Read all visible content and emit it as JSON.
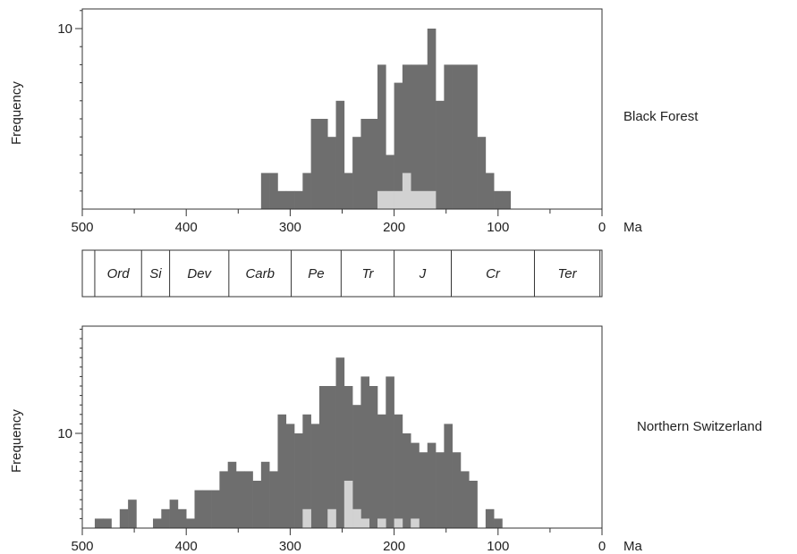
{
  "chart_data": [
    {
      "type": "bar",
      "name": "Black Forest",
      "ylabel": "Frequency",
      "x_unit": "Ma",
      "xlim": [
        500,
        0
      ],
      "x_ticks": [
        500,
        400,
        300,
        200,
        100,
        0
      ],
      "y_ticks": [
        10
      ],
      "ylim": [
        0,
        11
      ],
      "bin_width_ma": 8,
      "series": [
        {
          "role": "total",
          "color": "#6e6e6e",
          "bin_left_ma": [
            328,
            320,
            312,
            304,
            296,
            288,
            280,
            272,
            264,
            256,
            248,
            240,
            232,
            224,
            216,
            208,
            200,
            192,
            184,
            176,
            168,
            160,
            152,
            144,
            136,
            128,
            120,
            112,
            104,
            96
          ],
          "values": [
            2,
            2,
            1,
            1,
            1,
            2,
            5,
            5,
            4,
            6,
            2,
            4,
            5,
            5,
            8,
            3,
            7,
            8,
            8,
            8,
            10,
            6,
            8,
            8,
            8,
            8,
            4,
            2,
            1,
            1
          ]
        },
        {
          "role": "highlighted",
          "color": "#d2d2d2",
          "bin_left_ma": [
            216,
            208,
            200,
            192,
            184,
            176,
            168
          ],
          "values": [
            1,
            1,
            1,
            2,
            1,
            1,
            1
          ]
        }
      ]
    },
    {
      "type": "bar",
      "name": "Northern Switzerland",
      "ylabel": "Frequency",
      "x_unit": "Ma",
      "xlim": [
        500,
        0
      ],
      "x_ticks": [
        500,
        400,
        300,
        200,
        100,
        0
      ],
      "y_ticks": [
        10
      ],
      "ylim": [
        0,
        22
      ],
      "bin_width_ma": 8,
      "series": [
        {
          "role": "total",
          "color": "#6e6e6e",
          "bin_left_ma": [
            496,
            488,
            480,
            472,
            464,
            456,
            448,
            440,
            432,
            424,
            416,
            408,
            400,
            392,
            384,
            376,
            368,
            360,
            352,
            344,
            336,
            328,
            320,
            312,
            304,
            296,
            288,
            280,
            272,
            264,
            256,
            248,
            240,
            232,
            224,
            216,
            208,
            200,
            192,
            184,
            176,
            168,
            160,
            152,
            144,
            136,
            128,
            120,
            112,
            104,
            96
          ],
          "values": [
            0,
            1,
            1,
            0,
            2,
            3,
            0,
            0,
            1,
            2,
            3,
            2,
            1,
            4,
            4,
            4,
            6,
            7,
            6,
            6,
            5,
            7,
            6,
            12,
            11,
            10,
            12,
            11,
            15,
            15,
            18,
            15,
            13,
            16,
            15,
            12,
            16,
            12,
            10,
            9,
            8,
            9,
            8,
            11,
            8,
            6,
            5,
            0,
            2,
            1,
            0
          ],
          "_note": "rendered aligned to bins"
        },
        {
          "role": "highlighted",
          "color": "#d2d2d2",
          "bin_left_ma": [
            288,
            264,
            248,
            240,
            232,
            216,
            200,
            184
          ],
          "values": [
            2,
            2,
            5,
            2,
            1,
            1,
            1,
            1
          ]
        }
      ]
    }
  ],
  "periods": [
    {
      "label": "Ord",
      "start_ma": 488,
      "end_ma": 443
    },
    {
      "label": "Si",
      "start_ma": 443,
      "end_ma": 416
    },
    {
      "label": "Dev",
      "start_ma": 416,
      "end_ma": 359
    },
    {
      "label": "Carb",
      "start_ma": 359,
      "end_ma": 299
    },
    {
      "label": "Pe",
      "start_ma": 299,
      "end_ma": 251
    },
    {
      "label": "Tr",
      "start_ma": 251,
      "end_ma": 200
    },
    {
      "label": "J",
      "start_ma": 200,
      "end_ma": 145
    },
    {
      "label": "Cr",
      "start_ma": 145,
      "end_ma": 65
    },
    {
      "label": "Ter",
      "start_ma": 65,
      "end_ma": 2
    }
  ],
  "labels": {
    "top_region": "Black Forest",
    "bottom_region": "Northern Switzerland",
    "ylabel": "Frequency",
    "x_unit": "Ma"
  }
}
